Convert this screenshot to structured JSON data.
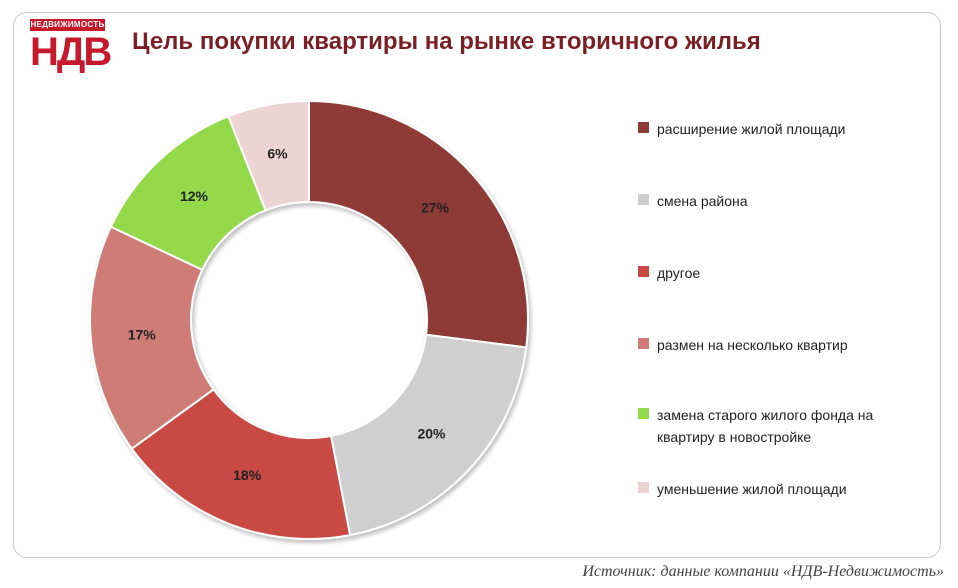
{
  "logo": {
    "top_text": "НЕДВИЖИМОСТЬ",
    "main_text": "НДВ"
  },
  "title": "Цель покупки квартиры на рынке вторичного жилья",
  "source": "Источник: данные компании «НДВ-Недвижимость»",
  "chart_data": {
    "type": "pie",
    "donut": true,
    "title": "Цель покупки квартиры на рынке вторичного жилья",
    "series": [
      {
        "name": "расширение жилой площади",
        "value": 27,
        "label": "27%",
        "color": "#8e3a37"
      },
      {
        "name": "смена района",
        "value": 20,
        "label": "20%",
        "color": "#cfcfcf"
      },
      {
        "name": "другое",
        "value": 18,
        "label": "18%",
        "color": "#c94a45"
      },
      {
        "name": "размен на несколько квартир",
        "value": 17,
        "label": "17%",
        "color": "#d07b76"
      },
      {
        "name": "замена старого жилого фонда на квартиру в новостройке",
        "value": 12,
        "label": "12%",
        "color": "#93d94a"
      },
      {
        "name": "уменьшение жилой площади",
        "value": 6,
        "label": "6%",
        "color": "#ecd4d4"
      }
    ],
    "legend_position": "right"
  }
}
